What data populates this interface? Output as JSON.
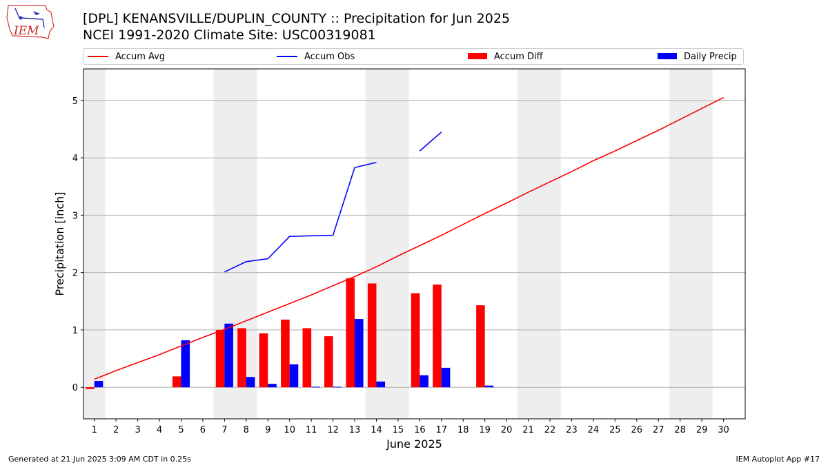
{
  "title": {
    "line1": "[DPL] KENANSVILLE/DUPLIN_COUNTY :: Precipitation for Jun 2025",
    "line2": "NCEI 1991-2020 Climate Site: USC00319081"
  },
  "logo": {
    "text": "IEM"
  },
  "legend": {
    "accum_avg": "Accum Avg",
    "accum_obs": "Accum Obs",
    "accum_diff": "Accum Diff",
    "daily_precip": "Daily Precip"
  },
  "footer": {
    "left": "Generated at 21 Jun 2025 3:09 AM CDT in 0.25s",
    "right": "IEM Autoplot App #17"
  },
  "colors": {
    "avg": "#ff0000",
    "obs": "#0000ff",
    "diff": "#ff0000",
    "daily": "#0000ff",
    "weekend_band": "#eeeeee",
    "grid": "#b0b0b0"
  },
  "chart_data": {
    "type": "bar",
    "xlabel": "June 2025",
    "ylabel": "Precipitation [inch]",
    "xlim": [
      0.5,
      31.0
    ],
    "ylim": [
      -0.55,
      5.55
    ],
    "yticks": [
      0,
      1,
      2,
      3,
      4,
      5
    ],
    "days": [
      1,
      2,
      3,
      4,
      5,
      6,
      7,
      8,
      9,
      10,
      11,
      12,
      13,
      14,
      15,
      16,
      17,
      18,
      19,
      20,
      21,
      22,
      23,
      24,
      25,
      26,
      27,
      28,
      29,
      30
    ],
    "weekend_bands": [
      [
        0.5,
        1.5
      ],
      [
        6.5,
        8.5
      ],
      [
        13.5,
        15.5
      ],
      [
        20.5,
        22.5
      ],
      [
        27.5,
        29.5
      ]
    ],
    "grid": "horizontal",
    "series": [
      {
        "name": "Accum Avg",
        "type": "line",
        "values": [
          0.14,
          0.29,
          0.43,
          0.57,
          0.72,
          0.87,
          1.01,
          1.16,
          1.31,
          1.46,
          1.61,
          1.77,
          1.93,
          2.1,
          2.29,
          2.47,
          2.65,
          2.84,
          3.03,
          3.21,
          3.4,
          3.58,
          3.76,
          3.95,
          4.12,
          4.3,
          4.48,
          4.67,
          4.86,
          5.05
        ]
      },
      {
        "name": "Accum Obs",
        "type": "line",
        "values": [
          null,
          null,
          null,
          null,
          null,
          null,
          2.01,
          2.19,
          2.24,
          2.63,
          2.64,
          2.65,
          3.83,
          3.92,
          null,
          4.12,
          4.45,
          null,
          null,
          null,
          null,
          null,
          null,
          null,
          null,
          null,
          null,
          null,
          null,
          null
        ]
      },
      {
        "name": "Accum Diff",
        "type": "bar",
        "values": [
          -0.03,
          null,
          null,
          null,
          0.19,
          null,
          1.0,
          1.03,
          0.94,
          1.18,
          1.03,
          0.89,
          1.9,
          1.81,
          null,
          1.64,
          1.79,
          null,
          1.43,
          null,
          null,
          null,
          null,
          null,
          null,
          null,
          null,
          null,
          null,
          null
        ]
      },
      {
        "name": "Daily Precip",
        "type": "bar",
        "values": [
          0.11,
          0,
          0,
          0,
          0.82,
          0,
          1.11,
          0.18,
          0.06,
          0.4,
          0.01,
          0.01,
          1.19,
          0.1,
          0,
          0.21,
          0.34,
          0,
          0.03,
          null,
          null,
          null,
          null,
          null,
          null,
          null,
          null,
          null,
          null,
          null
        ]
      }
    ]
  }
}
